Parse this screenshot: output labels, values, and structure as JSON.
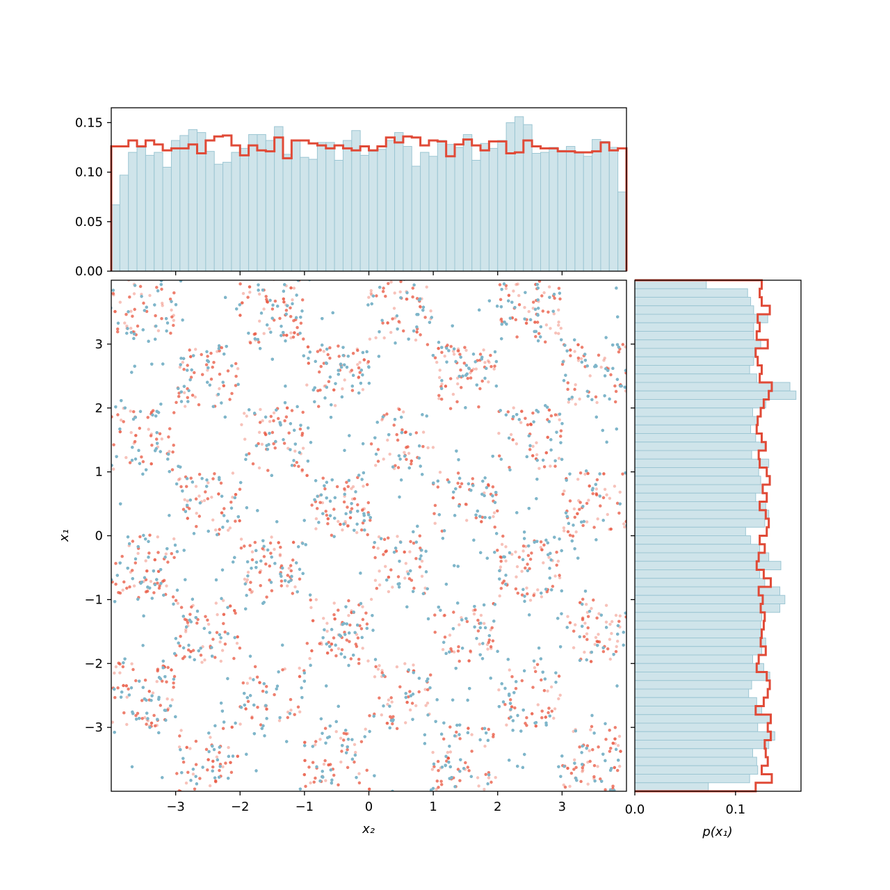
{
  "colors": {
    "model_points": "#7fb5c9",
    "target_points": "#e8503a",
    "hist_fill": "#cfe4ea",
    "hist_edge": "#9cc6d3",
    "target_line": "#e04a37"
  },
  "chart_data": [
    {
      "panel": "joint",
      "type": "scatter",
      "xlabel": "x₂",
      "ylabel": "x₁",
      "xlim": [
        -4,
        4
      ],
      "ylim": [
        -4,
        4
      ],
      "xticks": [
        "−3",
        "−2",
        "−1",
        "0",
        "1",
        "2",
        "3"
      ],
      "yticks": [
        "−3",
        "−2",
        "−1",
        "0",
        "1",
        "2",
        "3"
      ],
      "description_of_data": "checkerboard density on [-4,4]^2 with unit squares; occupied where floor(x2)+floor(x1) is odd",
      "series": [
        {
          "role": "model_samples",
          "color": "#7fb5c9",
          "n_points": 9000
        },
        {
          "role": "target_samples",
          "color": "#e8503a",
          "n_points": 3500
        }
      ]
    },
    {
      "panel": "marginal_x2",
      "type": "bar",
      "ylim": [
        0,
        0.165
      ],
      "yticks": [
        "0.00",
        "0.05",
        "0.10",
        "0.15"
      ],
      "bin_range": [
        -4,
        4
      ],
      "hist_values": [
        0.067,
        0.097,
        0.12,
        0.125,
        0.117,
        0.12,
        0.105,
        0.132,
        0.137,
        0.143,
        0.14,
        0.121,
        0.108,
        0.11,
        0.12,
        0.124,
        0.138,
        0.138,
        0.132,
        0.146,
        0.118,
        0.132,
        0.115,
        0.113,
        0.13,
        0.13,
        0.112,
        0.132,
        0.142,
        0.117,
        0.121,
        0.123,
        0.132,
        0.14,
        0.126,
        0.106,
        0.12,
        0.116,
        0.132,
        0.128,
        0.125,
        0.138,
        0.112,
        0.129,
        0.124,
        0.132,
        0.15,
        0.156,
        0.148,
        0.119,
        0.12,
        0.125,
        0.122,
        0.126,
        0.12,
        0.116,
        0.133,
        0.131,
        0.125,
        0.08
      ],
      "target_step": [
        0.126,
        0.126,
        0.132,
        0.126,
        0.132,
        0.128,
        0.122,
        0.124,
        0.124,
        0.128,
        0.119,
        0.132,
        0.136,
        0.137,
        0.127,
        0.117,
        0.127,
        0.122,
        0.121,
        0.135,
        0.114,
        0.132,
        0.132,
        0.129,
        0.127,
        0.124,
        0.127,
        0.124,
        0.122,
        0.126,
        0.122,
        0.126,
        0.135,
        0.13,
        0.136,
        0.135,
        0.127,
        0.132,
        0.131,
        0.116,
        0.128,
        0.133,
        0.127,
        0.122,
        0.131,
        0.131,
        0.119,
        0.12,
        0.132,
        0.126,
        0.124,
        0.124,
        0.121,
        0.121,
        0.12,
        0.12,
        0.121,
        0.13,
        0.122,
        0.124
      ]
    },
    {
      "panel": "marginal_x1",
      "type": "bar",
      "orientation": "horizontal",
      "xlabel": "p(x₁)",
      "xlim": [
        0,
        0.165
      ],
      "xticks": [
        "0.0",
        "0.1"
      ],
      "bin_range": [
        -4,
        4
      ],
      "hist_values": [
        0.071,
        0.112,
        0.115,
        0.118,
        0.132,
        0.118,
        0.118,
        0.125,
        0.119,
        0.118,
        0.114,
        0.121,
        0.154,
        0.16,
        0.13,
        0.117,
        0.122,
        0.115,
        0.12,
        0.13,
        0.116,
        0.133,
        0.123,
        0.125,
        0.127,
        0.12,
        0.13,
        0.133,
        0.129,
        0.11,
        0.115,
        0.124,
        0.133,
        0.145,
        0.124,
        0.129,
        0.144,
        0.149,
        0.144,
        0.126,
        0.125,
        0.125,
        0.13,
        0.126,
        0.117,
        0.128,
        0.134,
        0.116,
        0.113,
        0.121,
        0.126,
        0.135,
        0.122,
        0.139,
        0.133,
        0.117,
        0.121,
        0.122,
        0.114,
        0.073
      ],
      "target_step": [
        0.126,
        0.124,
        0.126,
        0.134,
        0.122,
        0.124,
        0.121,
        0.132,
        0.12,
        0.122,
        0.126,
        0.124,
        0.136,
        0.133,
        0.128,
        0.125,
        0.122,
        0.121,
        0.126,
        0.13,
        0.123,
        0.124,
        0.131,
        0.134,
        0.127,
        0.131,
        0.124,
        0.13,
        0.133,
        0.131,
        0.124,
        0.129,
        0.123,
        0.121,
        0.128,
        0.135,
        0.123,
        0.127,
        0.125,
        0.129,
        0.128,
        0.126,
        0.125,
        0.13,
        0.123,
        0.121,
        0.131,
        0.134,
        0.132,
        0.128,
        0.12,
        0.135,
        0.132,
        0.135,
        0.129,
        0.13,
        0.132,
        0.126,
        0.136,
        0.12
      ]
    }
  ]
}
